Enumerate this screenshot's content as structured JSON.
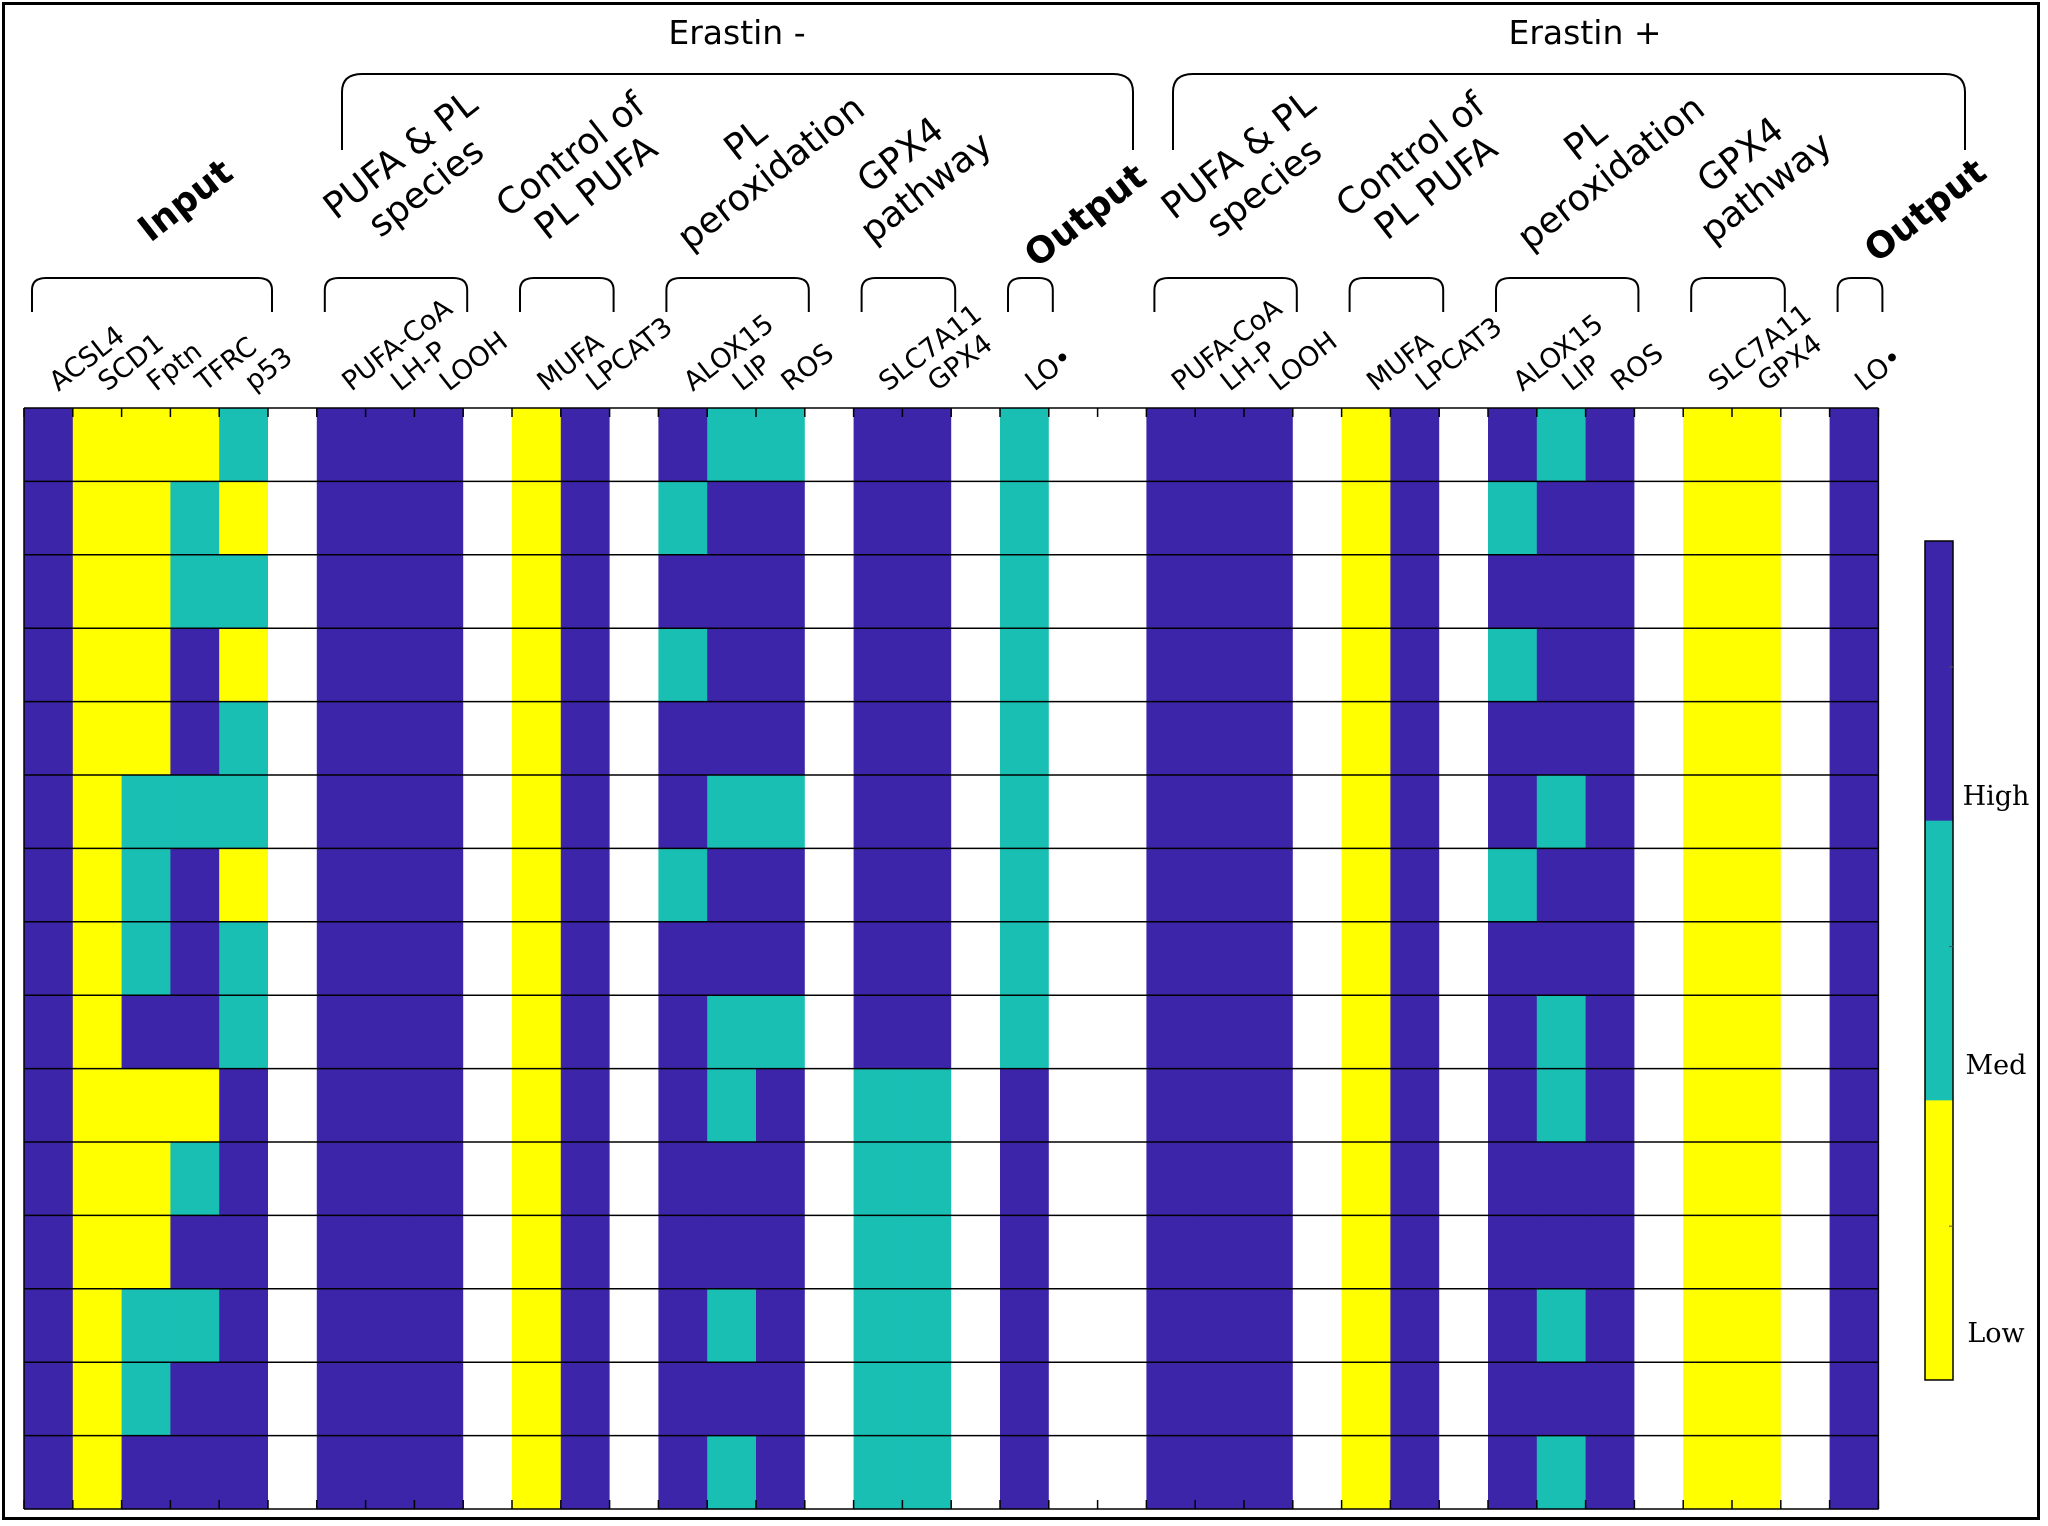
{
  "chart_data": {
    "type": "heatmap",
    "colors": {
      "Low": "#FFFF00",
      "Med": "#1ABFB4",
      "High": "#3C25A8",
      "blank": "#FFFFFF"
    },
    "colorbar": {
      "labels": [
        "High",
        "Med",
        "Low"
      ]
    },
    "sections": [
      {
        "title": "Erastin -"
      },
      {
        "title": "Erastin +"
      }
    ],
    "groups": [
      {
        "label": "Input",
        "bold": true,
        "section": -1
      },
      {
        "label": "PUFA & PL species",
        "section": 0
      },
      {
        "label": "Control of PL PUFA",
        "section": 0
      },
      {
        "label": "PL peroxidation",
        "section": 0
      },
      {
        "label": "GPX4 pathway",
        "section": 0
      },
      {
        "label": "Output",
        "bold": true,
        "section": 0
      },
      {
        "label": "PUFA & PL species",
        "section": 1
      },
      {
        "label": "Control of PL PUFA",
        "section": 1
      },
      {
        "label": "PL peroxidation",
        "section": 1
      },
      {
        "label": "GPX4 pathway",
        "section": 1
      },
      {
        "label": "Output",
        "bold": true,
        "section": 1
      }
    ],
    "columns": [
      "ACSL4",
      "SCD1",
      "Fptn",
      "TFRC",
      "p53",
      "",
      "PUFA-CoA",
      "LH-P",
      "LOOH",
      "",
      "MUFA",
      "LPCAT3",
      "",
      "ALOX15",
      "LIP",
      "ROS",
      "",
      "SLC7A11",
      "GPX4",
      "",
      "LO•",
      "",
      "",
      "PUFA-CoA",
      "LH-P",
      "LOOH",
      "",
      "MUFA",
      "LPCAT3",
      "",
      "ALOX15",
      "LIP",
      "ROS",
      "",
      "SLC7A11",
      "GPX4",
      "",
      "LO•"
    ],
    "legend_values": {
      "L": "Low",
      "M": "Med",
      "H": "High",
      "W": "blank"
    },
    "rows": [
      "HLLLMW HHHWLHWHMMWHHWMWW HHHWLHWHMHWLLWH",
      "HLLMLW HHHWLHWMHHWHHWMWW HHHWLHWMHHWLLWH",
      "HLLMMW HHHWLHWHHHWHHWMWW HHHWLHWHHHWLLWH",
      "HLLHLW HHHWLHWMHHWHHWMWW HHHWLHWMHHWLLWH",
      "HLLHMW HHHWLHWHHHWHHWMWW HHHWLHWHHHWLLWH",
      "HLMMMW HHHWLHWHMMWHHWMWW HHHWLHWHMHWLLWH",
      "HLMHLW HHHWLHWMHHWHHWMWW HHHWLHWMHHWLLWH",
      "HLMHMW HHHWLHWHHHWHHWMWW HHHWLHWHHHWLLWH",
      "HLHHMW HHHWLHWHMMWHHWMWW HHHWLHWHMHWLLWH",
      "HLLLHW HHHWLHWHMHWMMWHWW HHHWLHWHMHWLLWH",
      "HLLMHW HHHWLHWHHHWMMWHWW HHHWLHWHHHWLLWH",
      "HLLHHW HHHWLHWHHHWMMWHWW HHHWLHWHHHWLLWH",
      "HLMMHW HHHWLHWHMHWMMWHWW HHHWLHWHMHWLLWH",
      "HLMHHW HHHWLHWHHHWMMWHWW HHHWLHWHHHWLLWH",
      "HLHHHW HHHWLHWHMHWMMWHWW HHHWLHWHMHWLLWH"
    ]
  }
}
